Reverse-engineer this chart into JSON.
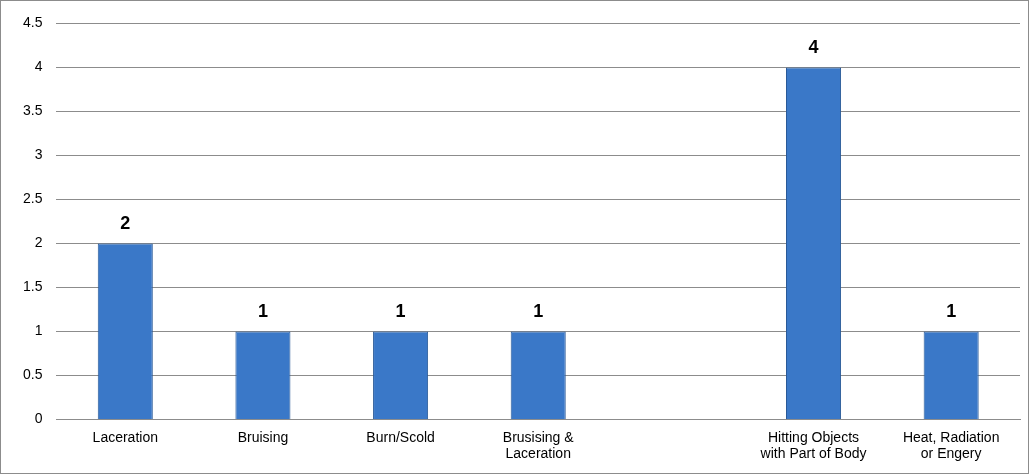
{
  "chart_data": {
    "type": "bar",
    "categories": [
      "Laceration",
      "Bruising",
      "Burn/Scold",
      "Brusising & Laceration",
      null,
      "Hitting Objects with Part of Body",
      "Heat, Radiation or Engery"
    ],
    "values": [
      2,
      1,
      1,
      1,
      null,
      4,
      1
    ],
    "color": "#3a78c8",
    "ylim": [
      0,
      4.5
    ],
    "yticks": [
      0,
      0.5,
      1,
      1.5,
      2,
      2.5,
      3,
      3.5,
      4,
      4.5
    ],
    "grid": "y",
    "data_labels": true
  }
}
